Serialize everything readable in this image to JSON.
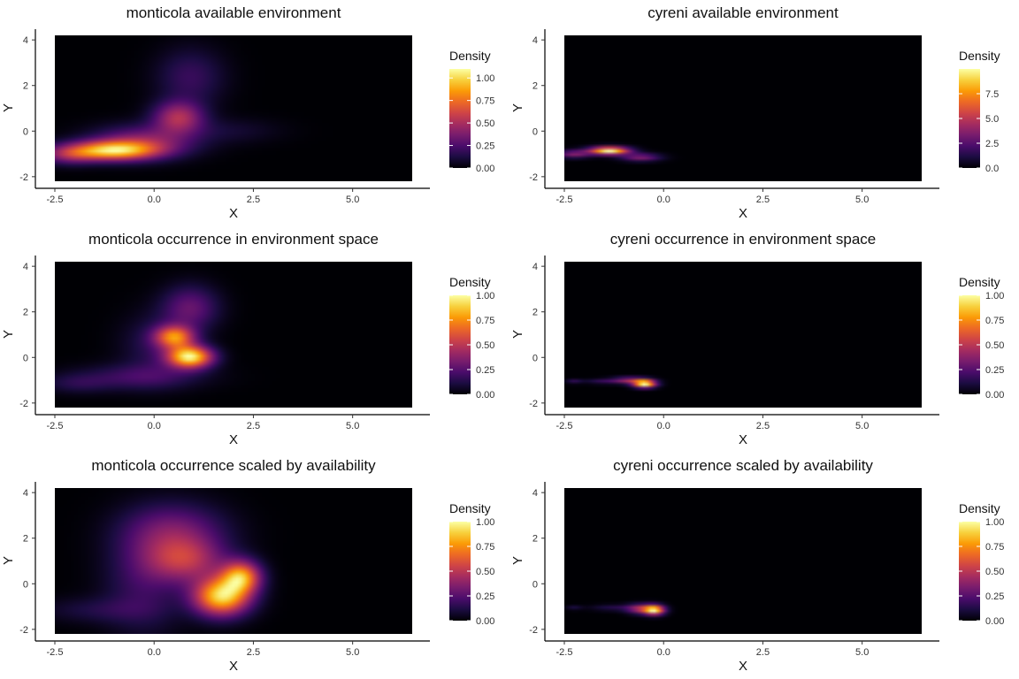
{
  "colors": {
    "colormap": "inferno",
    "stops": [
      "#000004",
      "#1b0c41",
      "#4a0c6b",
      "#781c6d",
      "#a52c60",
      "#cf4446",
      "#ed6925",
      "#fb9b06",
      "#f7d13d",
      "#fcffa4"
    ],
    "background": "#000004",
    "axis": "#000000"
  },
  "chart_data": [
    {
      "type": "heatmap",
      "title": "monticola available environment",
      "xlabel": "X",
      "ylabel": "Y",
      "xlim": [
        -2.5,
        6.5
      ],
      "ylim": [
        -2.2,
        4.2
      ],
      "xticks": [
        "-2.5",
        "0.0",
        "2.5",
        "5.0"
      ],
      "yticks": [
        "-2",
        "0",
        "2",
        "4"
      ],
      "legend": {
        "title": "Density",
        "range": [
          0,
          1.1
        ],
        "ticks": [
          "0.00",
          "0.25",
          "0.50",
          "0.75",
          "1.00"
        ],
        "position": "right"
      },
      "blobs": [
        {
          "x": -1.1,
          "y": -0.9,
          "sx": 0.8,
          "sy": 0.3,
          "a": 1.0
        },
        {
          "x": -0.3,
          "y": -0.5,
          "sx": 0.9,
          "sy": 0.5,
          "a": 0.45
        },
        {
          "x": 0.6,
          "y": 0.6,
          "sx": 0.45,
          "sy": 0.5,
          "a": 0.55
        },
        {
          "x": 0.9,
          "y": 2.4,
          "sx": 0.6,
          "sy": 0.9,
          "a": 0.22
        },
        {
          "x": 1.9,
          "y": 0.0,
          "sx": 0.9,
          "sy": 0.4,
          "a": 0.1
        },
        {
          "x": -2.2,
          "y": -1.1,
          "sx": 0.5,
          "sy": 0.3,
          "a": 0.35
        }
      ]
    },
    {
      "type": "heatmap",
      "title": "cyreni available environment",
      "xlabel": "X",
      "ylabel": "Y",
      "xlim": [
        -2.5,
        6.5
      ],
      "ylim": [
        -2.2,
        4.2
      ],
      "xticks": [
        "-2.5",
        "0.0",
        "2.5",
        "5.0"
      ],
      "yticks": [
        "-2",
        "0",
        "2",
        "4"
      ],
      "legend": {
        "title": "Density",
        "range": [
          0,
          10
        ],
        "ticks": [
          "0.0",
          "2.5",
          "5.0",
          "7.5"
        ],
        "position": "right"
      },
      "blobs": [
        {
          "x": -1.4,
          "y": -0.9,
          "sx": 0.35,
          "sy": 0.12,
          "a": 1.0
        },
        {
          "x": -0.6,
          "y": -1.2,
          "sx": 0.35,
          "sy": 0.12,
          "a": 0.35
        },
        {
          "x": -2.3,
          "y": -1.05,
          "sx": 0.3,
          "sy": 0.12,
          "a": 0.35
        }
      ]
    },
    {
      "type": "heatmap",
      "title": "monticola occurrence in environment space",
      "xlabel": "X",
      "ylabel": "Y",
      "xlim": [
        -2.5,
        6.5
      ],
      "ylim": [
        -2.2,
        4.2
      ],
      "xticks": [
        "-2.5",
        "0.0",
        "2.5",
        "5.0"
      ],
      "yticks": [
        "-2",
        "0",
        "2",
        "4"
      ],
      "legend": {
        "title": "Density",
        "range": [
          0,
          1.0
        ],
        "ticks": [
          "0.00",
          "0.25",
          "0.50",
          "0.75",
          "1.00"
        ],
        "position": "right"
      },
      "blobs": [
        {
          "x": 0.9,
          "y": 0.0,
          "sx": 0.4,
          "sy": 0.35,
          "a": 1.0
        },
        {
          "x": 0.5,
          "y": 0.9,
          "sx": 0.35,
          "sy": 0.35,
          "a": 0.7
        },
        {
          "x": 0.9,
          "y": 2.2,
          "sx": 0.5,
          "sy": 0.7,
          "a": 0.3
        },
        {
          "x": -0.4,
          "y": -0.9,
          "sx": 1.1,
          "sy": 0.4,
          "a": 0.2
        },
        {
          "x": -2.0,
          "y": -1.2,
          "sx": 0.6,
          "sy": 0.3,
          "a": 0.12
        },
        {
          "x": 0.0,
          "y": 0.5,
          "sx": 0.6,
          "sy": 1.0,
          "a": 0.15
        }
      ]
    },
    {
      "type": "heatmap",
      "title": "cyreni occurrence in environment space",
      "xlabel": "X",
      "ylabel": "Y",
      "xlim": [
        -2.5,
        6.5
      ],
      "ylim": [
        -2.2,
        4.2
      ],
      "xticks": [
        "-2.5",
        "0.0",
        "2.5",
        "5.0"
      ],
      "yticks": [
        "-2",
        "0",
        "2",
        "4"
      ],
      "legend": {
        "title": "Density",
        "range": [
          0,
          1.0
        ],
        "ticks": [
          "0.00",
          "0.25",
          "0.50",
          "0.75",
          "1.00"
        ],
        "position": "right"
      },
      "blobs": [
        {
          "x": -0.5,
          "y": -1.2,
          "sx": 0.2,
          "sy": 0.12,
          "a": 1.0
        },
        {
          "x": -0.9,
          "y": -1.05,
          "sx": 0.3,
          "sy": 0.1,
          "a": 0.4
        },
        {
          "x": -1.6,
          "y": -1.1,
          "sx": 0.3,
          "sy": 0.08,
          "a": 0.15
        },
        {
          "x": -2.3,
          "y": -1.1,
          "sx": 0.15,
          "sy": 0.07,
          "a": 0.15
        }
      ]
    },
    {
      "type": "heatmap",
      "title": "monticola occurrence scaled by availability",
      "xlabel": "X",
      "ylabel": "Y",
      "xlim": [
        -2.5,
        6.5
      ],
      "ylim": [
        -2.2,
        4.2
      ],
      "xticks": [
        "-2.5",
        "0.0",
        "2.5",
        "5.0"
      ],
      "yticks": [
        "-2",
        "0",
        "2",
        "4"
      ],
      "legend": {
        "title": "Density",
        "range": [
          0,
          1.0
        ],
        "ticks": [
          "0.00",
          "0.25",
          "0.50",
          "0.75",
          "1.00"
        ],
        "position": "right"
      },
      "blobs": [
        {
          "x": 1.7,
          "y": -0.6,
          "sx": 0.5,
          "sy": 0.6,
          "a": 1.0
        },
        {
          "x": 2.2,
          "y": 0.3,
          "sx": 0.35,
          "sy": 0.5,
          "a": 0.8
        },
        {
          "x": 0.8,
          "y": 1.0,
          "sx": 0.7,
          "sy": 0.7,
          "a": 0.45
        },
        {
          "x": 0.5,
          "y": 2.3,
          "sx": 0.9,
          "sy": 0.9,
          "a": 0.35
        },
        {
          "x": -0.3,
          "y": 0.0,
          "sx": 0.7,
          "sy": 1.6,
          "a": 0.2
        },
        {
          "x": -1.5,
          "y": -1.2,
          "sx": 1.0,
          "sy": 0.4,
          "a": 0.12
        }
      ]
    },
    {
      "type": "heatmap",
      "title": "cyreni occurrence scaled by availability",
      "xlabel": "X",
      "ylabel": "Y",
      "xlim": [
        -2.5,
        6.5
      ],
      "ylim": [
        -2.2,
        4.2
      ],
      "xticks": [
        "-2.5",
        "0.0",
        "2.5",
        "5.0"
      ],
      "yticks": [
        "-2",
        "0",
        "2",
        "4"
      ],
      "legend": {
        "title": "Density",
        "range": [
          0,
          1.0
        ],
        "ticks": [
          "0.00",
          "0.25",
          "0.50",
          "0.75",
          "1.00"
        ],
        "position": "right"
      },
      "blobs": [
        {
          "x": -0.25,
          "y": -1.2,
          "sx": 0.18,
          "sy": 0.15,
          "a": 1.0
        },
        {
          "x": -0.6,
          "y": -1.15,
          "sx": 0.25,
          "sy": 0.15,
          "a": 0.5
        },
        {
          "x": -1.3,
          "y": -1.1,
          "sx": 0.4,
          "sy": 0.1,
          "a": 0.15
        },
        {
          "x": -2.3,
          "y": -1.1,
          "sx": 0.15,
          "sy": 0.07,
          "a": 0.12
        }
      ]
    }
  ]
}
